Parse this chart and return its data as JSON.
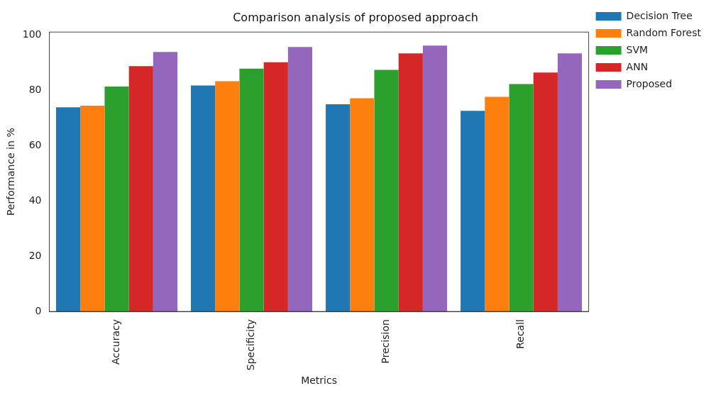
{
  "chart_data": {
    "type": "bar",
    "title": "Comparison analysis of proposed approach",
    "xlabel": "Metrics",
    "ylabel": "Performance in %",
    "categories": [
      "Accuracy",
      "Specificity",
      "Precision",
      "Recall"
    ],
    "series": [
      {
        "name": "Decision Tree",
        "color": "#1f77b4",
        "values": [
          73.8,
          81.7,
          74.9,
          72.5
        ]
      },
      {
        "name": "Random Forest",
        "color": "#ff7f0e",
        "values": [
          74.4,
          83.2,
          77.1,
          77.6
        ]
      },
      {
        "name": "SVM",
        "color": "#2ca02c",
        "values": [
          81.3,
          87.8,
          87.3,
          82.2
        ]
      },
      {
        "name": "ANN",
        "color": "#d62728",
        "values": [
          88.7,
          90.1,
          93.3,
          86.4
        ]
      },
      {
        "name": "Proposed",
        "color": "#9467bd",
        "values": [
          93.8,
          95.6,
          96.1,
          93.3
        ]
      }
    ],
    "ylim": [
      0,
      101
    ],
    "yticks": [
      0,
      20,
      40,
      60,
      80,
      100
    ],
    "grid": false,
    "legend": "right"
  }
}
